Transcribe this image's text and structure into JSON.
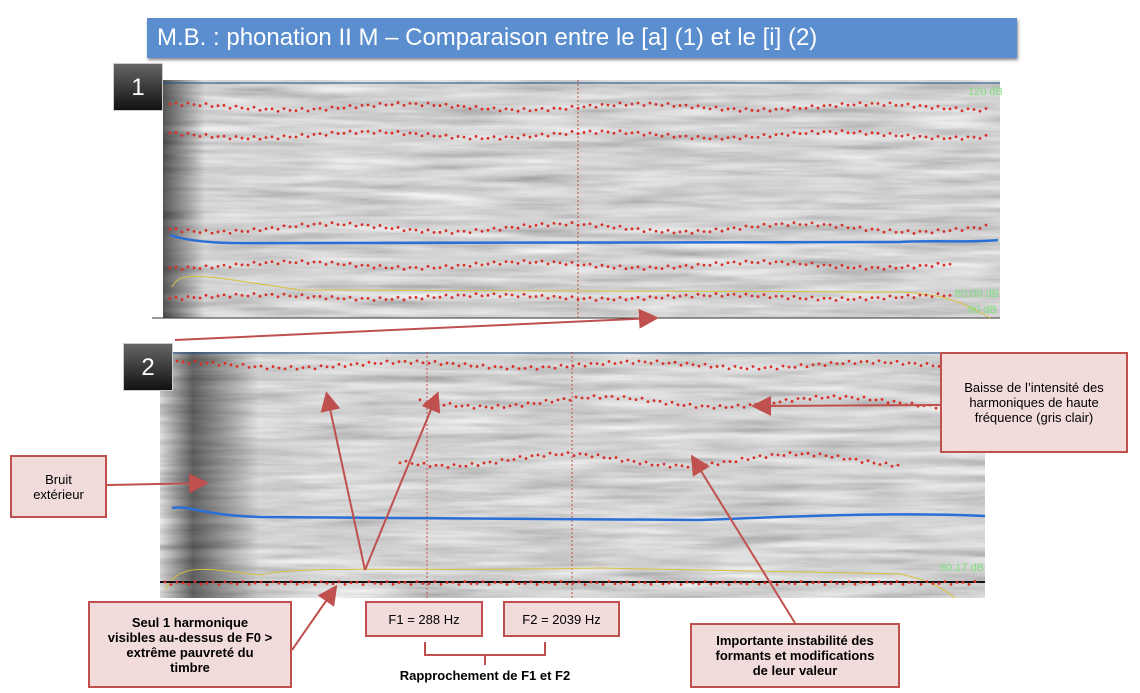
{
  "header": {
    "title": "M.B. : phonation II M – Comparaison entre le [a] (1) et le [i] (2)"
  },
  "panels": [
    {
      "label": "1",
      "level_labels": [
        "120 dB",
        "60.00 dB",
        "60 dB"
      ]
    },
    {
      "label": "2",
      "level_labels": [
        "60.17 dB"
      ]
    }
  ],
  "annotations": {
    "noise": [
      "Bruit",
      "extérieur"
    ],
    "high_freq": [
      "Baisse de l’intensité des",
      "harmoniques de haute",
      "fréquence (gris clair)"
    ],
    "harmonic": [
      "Seul 1 harmonique",
      "visibles au-dessus de F0 >",
      "extrême pauvreté du",
      "timbre"
    ],
    "f1": "F1 = 288 Hz",
    "f2": "F2 = 2039 Hz",
    "convergence": "Rapprochement de F1 et F2",
    "instability": [
      "Importante instabilité des",
      "formants et modifications",
      "de leur valeur"
    ]
  }
}
